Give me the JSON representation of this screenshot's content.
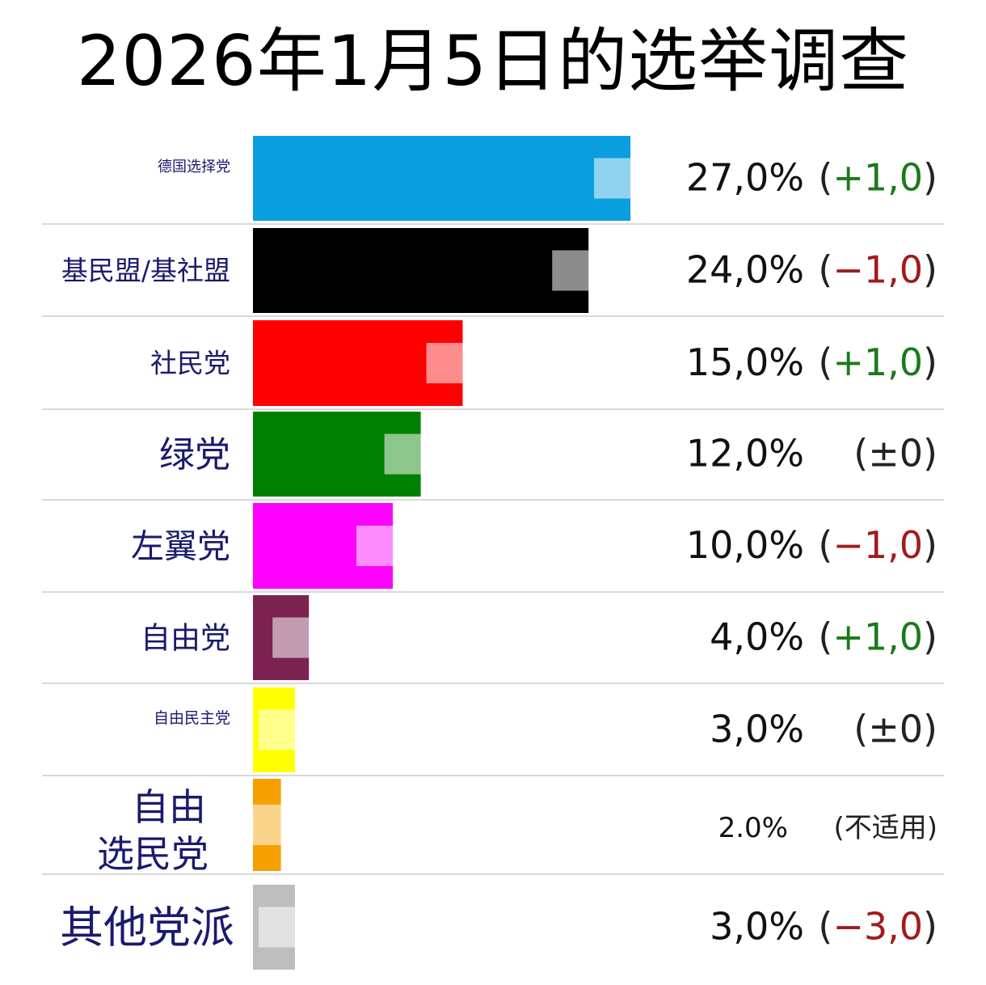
{
  "title": "2026年1月5日的选举调查",
  "chart_data": {
    "type": "bar",
    "orientation": "horizontal",
    "title": "2026年1月5日的选举调查",
    "grid": false,
    "unit": "%",
    "categories": [
      "德国选择党",
      "基民盟/基社盟",
      "社民党",
      "绿党",
      "左翼党",
      "自由党",
      "自由民主党",
      "自由选民党",
      "其他党派"
    ],
    "values": [
      27.0,
      24.0,
      15.0,
      12.0,
      10.0,
      4.0,
      3.0,
      2.0,
      3.0
    ],
    "value_labels": [
      "27,0%",
      "24,0%",
      "15,0%",
      "12,0%",
      "10,0%",
      "4,0%",
      "3,0%",
      "2.0%",
      "3,0%"
    ],
    "change_labels": [
      "(+1,0)",
      "(−1,0)",
      "(+1,0)",
      "(±0)",
      "(−1,0)",
      "(+1,0)",
      "(±0)",
      "(不适用)",
      "(−3,0)"
    ],
    "change_values": [
      1.0,
      -1.0,
      1.0,
      0.0,
      -1.0,
      1.0,
      0.0,
      null,
      -3.0
    ],
    "colors": [
      "#0a9ee0",
      "#000000",
      "#ff0000",
      "#008000",
      "#ff00ff",
      "#7b2250",
      "#ffff00",
      "#f5a000",
      "#bdbdbd"
    ]
  },
  "colors": {
    "party_label": "#1a1a6e",
    "positive_change": "#1a7a1a",
    "negative_change": "#a11b1b",
    "separator": "#d9d9d9"
  }
}
